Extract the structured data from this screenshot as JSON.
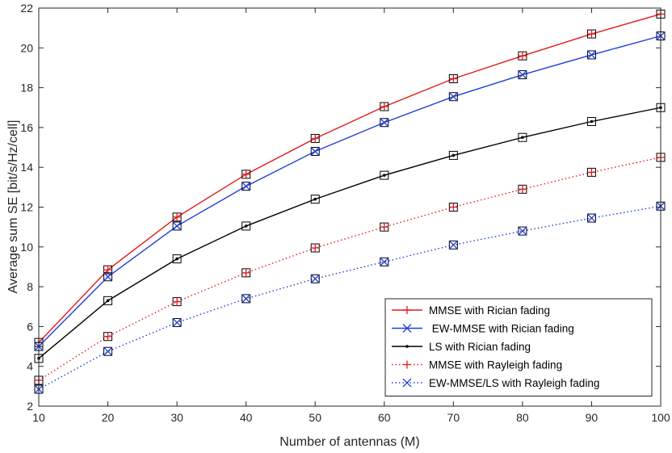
{
  "chart_data": {
    "type": "line",
    "xlabel": "Number of antennas (M)",
    "ylabel": "Average sum SE [bit/s/Hz/cell]",
    "xlim": [
      10,
      100
    ],
    "ylim": [
      2,
      22
    ],
    "xticks": [
      10,
      20,
      30,
      40,
      50,
      60,
      70,
      80,
      90,
      100
    ],
    "yticks": [
      2,
      4,
      6,
      8,
      10,
      12,
      14,
      16,
      18,
      20,
      22
    ],
    "grid": false,
    "legend_position": "bottom-right",
    "x": [
      10,
      20,
      30,
      40,
      50,
      60,
      70,
      80,
      90,
      100
    ],
    "series": [
      {
        "name": "MMSE with Rician fading",
        "legend_label": "MMSE with Rician fading",
        "color": "#e41a1c",
        "line_style": "solid",
        "marker": "plus",
        "overlay_marker": "square",
        "overlay_color": "#000000",
        "values": [
          5.2,
          8.85,
          11.5,
          13.65,
          15.45,
          17.05,
          18.45,
          19.6,
          20.7,
          21.7
        ]
      },
      {
        "name": "EW-MMSE with Rician fading",
        "legend_label": " EW-MMSE with Rician fading",
        "color": "#1f3fd8",
        "line_style": "solid",
        "marker": "x",
        "overlay_marker": "square",
        "overlay_color": "#000000",
        "values": [
          5.0,
          8.5,
          11.05,
          13.05,
          14.8,
          16.25,
          17.55,
          18.65,
          19.65,
          20.6
        ]
      },
      {
        "name": "LS with Rician fading",
        "legend_label": "LS with Rician fading",
        "color": "#000000",
        "line_style": "solid",
        "marker": "dot",
        "overlay_marker": "square",
        "overlay_color": "#000000",
        "values": [
          4.4,
          7.3,
          9.4,
          11.05,
          12.4,
          13.6,
          14.6,
          15.5,
          16.3,
          17.0
        ]
      },
      {
        "name": "MMSE with Rayleigh fading",
        "legend_label": "MMSE with Rayleigh fading",
        "color": "#e41a1c",
        "line_style": "dotted",
        "marker": "plus",
        "overlay_marker": "square",
        "overlay_color": "#000000",
        "values": [
          3.3,
          5.5,
          7.25,
          8.7,
          9.95,
          11.0,
          12.0,
          12.9,
          13.75,
          14.5
        ]
      },
      {
        "name": "EW-MMSE/LS with Rayleigh fading",
        "legend_label": "EW-MMSE/LS with Rayleigh fading",
        "color": "#1f3fd8",
        "line_style": "dotted",
        "marker": "x",
        "overlay_marker": "square",
        "overlay_color": "#000000",
        "values": [
          2.85,
          4.75,
          6.2,
          7.4,
          8.4,
          9.25,
          10.1,
          10.8,
          11.45,
          12.05
        ]
      }
    ]
  }
}
